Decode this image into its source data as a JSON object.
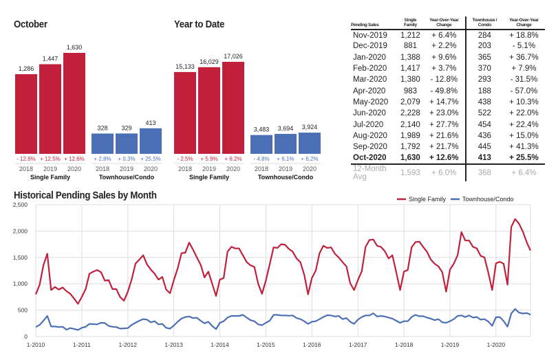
{
  "colors": {
    "single_family": "#c0203a",
    "townhouse": "#4a6fb5"
  },
  "chart_data": [
    {
      "type": "bar",
      "title": "October",
      "groups": [
        {
          "name": "Single Family",
          "categories": [
            "2018",
            "2019",
            "2020"
          ],
          "values": [
            1286,
            1447,
            1630
          ],
          "labels": [
            "1,286",
            "1,447",
            "1,630"
          ],
          "changes": [
            "- 12.6%",
            "+ 12.5%",
            "+ 12.6%"
          ]
        },
        {
          "name": "Townhouse/Condo",
          "categories": [
            "2018",
            "2019",
            "2020"
          ],
          "values": [
            328,
            329,
            413
          ],
          "labels": [
            "328",
            "329",
            "413"
          ],
          "changes": [
            "+ 2.8%",
            "+ 0.3%",
            "+ 25.5%"
          ]
        }
      ]
    },
    {
      "type": "bar",
      "title": "Year to Date",
      "groups": [
        {
          "name": "Single Family",
          "categories": [
            "2018",
            "2019",
            "2020"
          ],
          "values": [
            15133,
            16029,
            17026
          ],
          "labels": [
            "15,133",
            "16,029",
            "17,026"
          ],
          "changes": [
            "- 2.5%",
            "+ 5.9%",
            "+ 6.2%"
          ]
        },
        {
          "name": "Townhouse/Condo",
          "categories": [
            "2018",
            "2019",
            "2020"
          ],
          "values": [
            3483,
            3694,
            3924
          ],
          "labels": [
            "3,483",
            "3,694",
            "3,924"
          ],
          "changes": [
            "- 4.8%",
            "+ 6.1%",
            "+ 6.2%"
          ]
        }
      ]
    },
    {
      "type": "table",
      "headers": [
        "Pending Sales",
        "Single Family",
        "Year-Over-Year Change",
        "Townhouse / Condo",
        "Year-Over-Year Change"
      ],
      "rows": [
        [
          "Nov-2019",
          "1,212",
          "+ 6.4%",
          "284",
          "+ 18.8%"
        ],
        [
          "Dec-2019",
          "881",
          "+ 2.2%",
          "203",
          "- 5.1%"
        ],
        [
          "Jan-2020",
          "1,388",
          "+ 9.6%",
          "365",
          "+ 36.7%"
        ],
        [
          "Feb-2020",
          "1,417",
          "+ 3.7%",
          "370",
          "+ 7.9%"
        ],
        [
          "Mar-2020",
          "1,380",
          "- 12.8%",
          "293",
          "- 31.5%"
        ],
        [
          "Apr-2020",
          "983",
          "- 49.8%",
          "188",
          "- 57.0%"
        ],
        [
          "May-2020",
          "2,079",
          "+ 14.7%",
          "438",
          "+ 10.3%"
        ],
        [
          "Jun-2020",
          "2,228",
          "+ 23.0%",
          "522",
          "+ 22.0%"
        ],
        [
          "Jul-2020",
          "2,140",
          "+ 27.7%",
          "454",
          "+ 22.4%"
        ],
        [
          "Aug-2020",
          "1,989",
          "+ 21.6%",
          "436",
          "+ 15.0%"
        ],
        [
          "Sep-2020",
          "1,792",
          "+ 21.7%",
          "445",
          "+ 41.3%"
        ],
        [
          "Oct-2020",
          "1,630",
          "+ 12.6%",
          "413",
          "+ 25.5%"
        ]
      ],
      "average": [
        "12-Month Avg",
        "1,593",
        "+ 6.0%",
        "368",
        "+ 6.4%"
      ]
    },
    {
      "type": "line",
      "title": "Historical Pending Sales by Month",
      "start": "1-2010",
      "ylim": [
        0,
        2500
      ],
      "yticks": [
        0,
        500,
        1000,
        1500,
        2000,
        2500
      ],
      "ytick_labels": [
        "0",
        "500",
        "1,000",
        "1,500",
        "2,000",
        "2,500"
      ],
      "xtick_labels": [
        "1-2010",
        "1-2011",
        "1-2012",
        "1-2013",
        "1-2014",
        "1-2015",
        "1-2016",
        "1-2017",
        "1-2018",
        "1-2019",
        "1-2020"
      ],
      "grid": true,
      "legend": "top-right",
      "series": [
        {
          "name": "Single Family",
          "values": [
            800,
            980,
            1350,
            1570,
            880,
            940,
            890,
            930,
            860,
            810,
            720,
            620,
            750,
            900,
            1190,
            1230,
            1260,
            1220,
            1060,
            1070,
            900,
            900,
            750,
            680,
            850,
            1080,
            1380,
            1460,
            1540,
            1370,
            1270,
            1190,
            1080,
            1130,
            890,
            820,
            1070,
            1290,
            1580,
            1590,
            1780,
            1650,
            1500,
            1360,
            1120,
            1230,
            1000,
            770,
            1080,
            1110,
            1610,
            1700,
            1670,
            1670,
            1540,
            1410,
            1350,
            1320,
            1000,
            810,
            1060,
            1370,
            1690,
            1680,
            1750,
            1740,
            1660,
            1610,
            1480,
            1410,
            1170,
            800,
            1110,
            1250,
            1580,
            1720,
            1680,
            1690,
            1570,
            1500,
            1410,
            1330,
            1010,
            880,
            1070,
            1240,
            1700,
            1830,
            1840,
            1720,
            1700,
            1620,
            1480,
            1540,
            1220,
            880,
            1230,
            1260,
            1690,
            1790,
            1800,
            1700,
            1610,
            1460,
            1380,
            1330,
            1220,
            850,
            1270,
            1380,
            1540,
            1980,
            1820,
            1820,
            1700,
            1670,
            1530,
            1500,
            1212,
            881,
            1388,
            1417,
            1380,
            983,
            2079,
            2228,
            2140,
            1989,
            1792,
            1630
          ]
        },
        {
          "name": "Townhouse/Condo",
          "values": [
            180,
            220,
            300,
            390,
            190,
            190,
            180,
            185,
            130,
            160,
            145,
            125,
            165,
            185,
            240,
            235,
            230,
            260,
            255,
            200,
            185,
            180,
            150,
            155,
            160,
            220,
            260,
            300,
            330,
            320,
            270,
            290,
            230,
            240,
            165,
            150,
            210,
            280,
            340,
            370,
            380,
            350,
            355,
            300,
            250,
            280,
            200,
            140,
            260,
            290,
            360,
            390,
            390,
            390,
            410,
            360,
            310,
            290,
            230,
            215,
            260,
            300,
            410,
            410,
            400,
            400,
            395,
            400,
            350,
            330,
            290,
            240,
            280,
            290,
            330,
            370,
            405,
            400,
            380,
            390,
            330,
            350,
            280,
            240,
            320,
            370,
            400,
            400,
            440,
            380,
            390,
            380,
            360,
            340,
            300,
            260,
            290,
            290,
            370,
            410,
            385,
            385,
            360,
            340,
            310,
            330,
            270,
            260,
            290,
            330,
            390,
            400,
            370,
            400,
            360,
            370,
            320,
            330,
            284,
            203,
            365,
            370,
            293,
            188,
            438,
            522,
            454,
            436,
            445,
            413
          ]
        }
      ]
    }
  ]
}
